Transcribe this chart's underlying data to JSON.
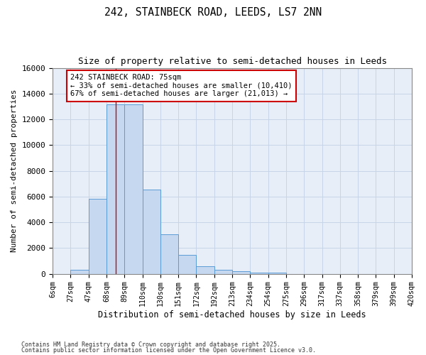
{
  "title1": "242, STAINBECK ROAD, LEEDS, LS7 2NN",
  "title2": "Size of property relative to semi-detached houses in Leeds",
  "xlabel": "Distribution of semi-detached houses by size in Leeds",
  "ylabel": "Number of semi-detached properties",
  "bin_labels": [
    "6sqm",
    "27sqm",
    "47sqm",
    "68sqm",
    "89sqm",
    "110sqm",
    "130sqm",
    "151sqm",
    "172sqm",
    "192sqm",
    "213sqm",
    "234sqm",
    "254sqm",
    "275sqm",
    "296sqm",
    "317sqm",
    "337sqm",
    "358sqm",
    "379sqm",
    "399sqm",
    "420sqm"
  ],
  "bar_heights": [
    0,
    290,
    5820,
    13150,
    13150,
    6550,
    3050,
    1480,
    590,
    290,
    200,
    100,
    100,
    0,
    0,
    0,
    0,
    0,
    0,
    0
  ],
  "bar_color": "#c5d8f0",
  "bar_edge_color": "#5b9bd5",
  "grid_color": "#c8d4e8",
  "background_color": "#e8eef8",
  "red_line_x": 3.5,
  "red_line_color": "#dd0000",
  "annotation_text": "242 STAINBECK ROAD: 75sqm\n← 33% of semi-detached houses are smaller (10,410)\n67% of semi-detached houses are larger (21,013) →",
  "annotation_box_color": "#ffffff",
  "annotation_box_edge": "#cc0000",
  "ylim": [
    0,
    16000
  ],
  "yticks": [
    0,
    2000,
    4000,
    6000,
    8000,
    10000,
    12000,
    14000,
    16000
  ],
  "footnote1": "Contains HM Land Registry data © Crown copyright and database right 2025.",
  "footnote2": "Contains public sector information licensed under the Open Government Licence v3.0."
}
